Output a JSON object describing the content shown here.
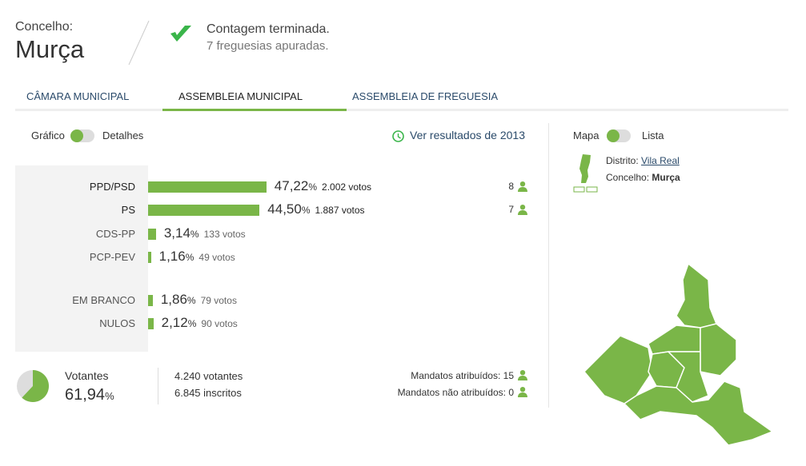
{
  "header": {
    "label": "Concelho:",
    "name": "Murça",
    "status": "Contagem terminada.",
    "detail": "7 freguesias apuradas."
  },
  "tabs": {
    "items": [
      "CÂMARA MUNICIPAL",
      "ASSEMBLEIA MUNICIPAL",
      "ASSEMBLEIA DE FREGUESIA"
    ],
    "active": 1
  },
  "view_toggle": {
    "left": "Gráfico",
    "right": "Detalhes"
  },
  "history_link": "Ver resultados de 2013",
  "percent_sign": "%",
  "results": {
    "parties": [
      {
        "name": "PPD/PSD",
        "percent": {
          "value": 47.22,
          "label": "47,22"
        },
        "votes": "2.002 votos",
        "seats": "8",
        "leading": true
      },
      {
        "name": "PS",
        "percent": {
          "value": 44.5,
          "label": "44,50"
        },
        "votes": "1.887 votos",
        "seats": "7",
        "leading": true
      },
      {
        "name": "CDS-PP",
        "percent": {
          "value": 3.14,
          "label": "3,14"
        },
        "votes": "133 votos",
        "seats": null,
        "leading": false
      },
      {
        "name": "PCP-PEV",
        "percent": {
          "value": 1.16,
          "label": "1,16"
        },
        "votes": "49 votos",
        "seats": null,
        "leading": false
      }
    ],
    "other": [
      {
        "name": "EM BRANCO",
        "percent": {
          "value": 1.86,
          "label": "1,86"
        },
        "votes": "79 votos"
      },
      {
        "name": "NULOS",
        "percent": {
          "value": 2.12,
          "label": "2,12"
        },
        "votes": "90 votos"
      }
    ]
  },
  "summary": {
    "label": "Votantes",
    "percent": {
      "value": 61.94,
      "label": "61,94"
    },
    "voters": "4.240 votantes",
    "registered": "6.845 inscritos",
    "seats_assigned": "Mandatos atribuídos: 15",
    "seats_unassigned": "Mandatos não atribuídos: 0"
  },
  "map_panel": {
    "toggle_left": "Mapa",
    "toggle_right": "Lista",
    "district_label": "Distrito:",
    "district": "Vila Real",
    "municipality_label": "Concelho:",
    "municipality": "Murça"
  }
}
